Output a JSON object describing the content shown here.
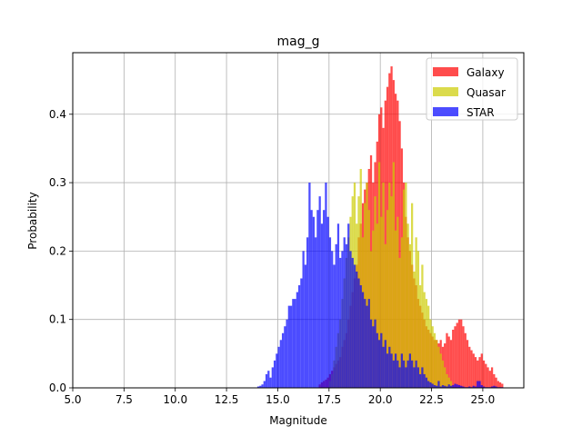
{
  "chart_data": {
    "type": "bar",
    "title": "mag_g",
    "xlabel": "Magnitude",
    "ylabel": "Probability",
    "xlim": [
      5.0,
      27.0
    ],
    "ylim": [
      0.0,
      0.49
    ],
    "xticks": [
      "5.0",
      "7.5",
      "10.0",
      "12.5",
      "15.0",
      "17.5",
      "20.0",
      "22.5",
      "25.0"
    ],
    "xtick_values": [
      5.0,
      7.5,
      10.0,
      12.5,
      15.0,
      17.5,
      20.0,
      22.5,
      25.0
    ],
    "yticks": [
      "0.0",
      "0.1",
      "0.2",
      "0.3",
      "0.4"
    ],
    "ytick_values": [
      0.0,
      0.1,
      0.2,
      0.3,
      0.4
    ],
    "grid": true,
    "legend_position": "top-right",
    "bin_width": 0.1,
    "series": [
      {
        "name": "Galaxy",
        "color": "#ff0000",
        "opacity": 0.7,
        "x_start": 17.0,
        "values": [
          0.005,
          0.008,
          0.01,
          0.012,
          0.015,
          0.02,
          0.025,
          0.03,
          0.035,
          0.04,
          0.045,
          0.06,
          0.07,
          0.08,
          0.1,
          0.12,
          0.14,
          0.16,
          0.18,
          0.22,
          0.24,
          0.27,
          0.29,
          0.3,
          0.32,
          0.34,
          0.3,
          0.33,
          0.36,
          0.4,
          0.41,
          0.38,
          0.42,
          0.44,
          0.46,
          0.47,
          0.45,
          0.43,
          0.42,
          0.39,
          0.35,
          0.3,
          0.25,
          0.22,
          0.2,
          0.18,
          0.16,
          0.15,
          0.13,
          0.12,
          0.11,
          0.1,
          0.09,
          0.085,
          0.08,
          0.075,
          0.07,
          0.07,
          0.065,
          0.07,
          0.06,
          0.065,
          0.08,
          0.075,
          0.07,
          0.085,
          0.09,
          0.095,
          0.1,
          0.1,
          0.09,
          0.08,
          0.07,
          0.06,
          0.055,
          0.05,
          0.045,
          0.04,
          0.045,
          0.05,
          0.04,
          0.035,
          0.03,
          0.025,
          0.03,
          0.02,
          0.015,
          0.01,
          0.008,
          0.006
        ]
      },
      {
        "name": "Quasar",
        "color": "#cccc00",
        "opacity": 0.7,
        "x_start": 17.5,
        "values": [
          0.01,
          0.02,
          0.04,
          0.06,
          0.08,
          0.1,
          0.13,
          0.16,
          0.19,
          0.22,
          0.25,
          0.28,
          0.3,
          0.24,
          0.28,
          0.32,
          0.22,
          0.27,
          0.3,
          0.26,
          0.2,
          0.23,
          0.28,
          0.24,
          0.33,
          0.25,
          0.3,
          0.21,
          0.26,
          0.3,
          0.28,
          0.33,
          0.23,
          0.25,
          0.19,
          0.22,
          0.29,
          0.3,
          0.24,
          0.21,
          0.27,
          0.17,
          0.22,
          0.2,
          0.15,
          0.18,
          0.14,
          0.13,
          0.12,
          0.1,
          0.09,
          0.08,
          0.07,
          0.06,
          0.05,
          0.04,
          0.03,
          0.02,
          0.015,
          0.01
        ]
      },
      {
        "name": "STAR",
        "color": "#0000ff",
        "opacity": 0.7,
        "x_start": 14.0,
        "values": [
          0.002,
          0.003,
          0.005,
          0.01,
          0.02,
          0.025,
          0.015,
          0.03,
          0.04,
          0.05,
          0.06,
          0.07,
          0.08,
          0.09,
          0.1,
          0.12,
          0.12,
          0.13,
          0.13,
          0.14,
          0.15,
          0.16,
          0.2,
          0.18,
          0.22,
          0.3,
          0.26,
          0.25,
          0.22,
          0.26,
          0.28,
          0.24,
          0.26,
          0.3,
          0.25,
          0.22,
          0.2,
          0.18,
          0.21,
          0.24,
          0.19,
          0.2,
          0.22,
          0.21,
          0.24,
          0.2,
          0.19,
          0.18,
          0.17,
          0.16,
          0.15,
          0.14,
          0.13,
          0.12,
          0.13,
          0.1,
          0.09,
          0.1,
          0.08,
          0.07,
          0.08,
          0.06,
          0.07,
          0.05,
          0.06,
          0.05,
          0.04,
          0.05,
          0.04,
          0.03,
          0.05,
          0.04,
          0.03,
          0.04,
          0.05,
          0.04,
          0.03,
          0.04,
          0.03,
          0.02,
          0.03,
          0.02,
          0.015,
          0.01,
          0.008,
          0.006,
          0.004,
          0.003,
          0.01,
          0.002,
          0.004,
          0.003,
          0.002,
          0.005,
          0.003,
          0.004,
          0.006,
          0.005,
          0.004,
          0.003,
          0.002,
          0.001,
          0.001,
          0.002,
          0.001,
          0.003,
          0.002,
          0.01,
          0.01,
          0.004,
          0.002,
          0.001,
          0.001,
          0.001,
          0.002,
          0.003,
          0.002,
          0.001,
          0.001,
          0.001
        ]
      }
    ]
  }
}
